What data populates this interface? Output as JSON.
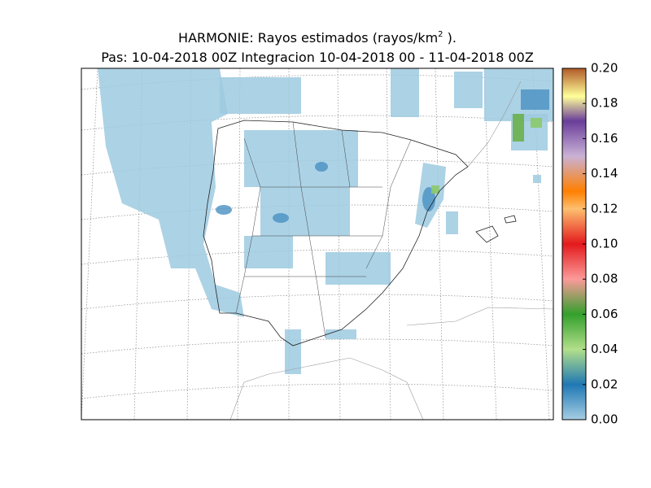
{
  "title": {
    "text": "HARMONIE: Rayos estimados  (rayos/km",
    "superscript": "2",
    "suffix": " )."
  },
  "subtitle": "Pas: 10-04-2018 00Z Integracion 10-04-2018 00 - 11-04-2018 00Z",
  "colorbar": {
    "lim": [
      0,
      0.2
    ],
    "ticks": [
      {
        "value": 0,
        "label": "0.00"
      },
      {
        "value": 0.02,
        "label": "0.02"
      },
      {
        "value": 0.04,
        "label": "0.04"
      },
      {
        "value": 0.06,
        "label": "0.06"
      },
      {
        "value": 0.08,
        "label": "0.08"
      },
      {
        "value": 0.1,
        "label": "0.10"
      },
      {
        "value": 0.12,
        "label": "0.12"
      },
      {
        "value": 0.14,
        "label": "0.14"
      },
      {
        "value": 0.16,
        "label": "0.16"
      },
      {
        "value": 0.18,
        "label": "0.18"
      },
      {
        "value": 0.2,
        "label": "0.20"
      }
    ]
  }
}
